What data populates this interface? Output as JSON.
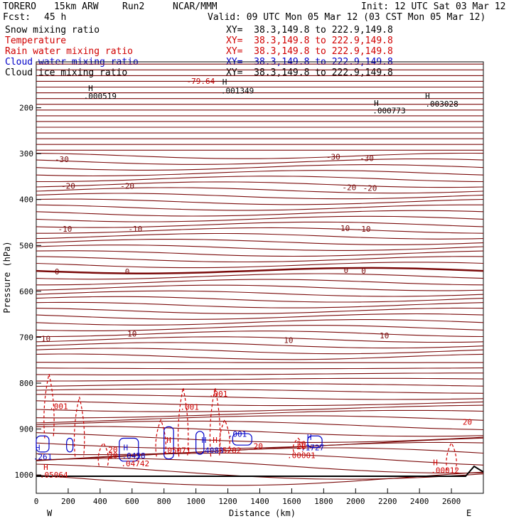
{
  "header": {
    "model": "TORERO",
    "resolution": "15km ARW",
    "run": "Run2",
    "org": "NCAR/MMM",
    "init": "Init: 12 UTC Sat 03 Mar 12",
    "fcst_label": "Fcst:",
    "fcst_value": "45 h",
    "valid": "Valid: 09 UTC Mon 05 Mar 12 (03 CST Mon 05 Mar 12)"
  },
  "fields": [
    {
      "name": "Snow mixing ratio",
      "xy": "XY=  38.3,149.8 to 222.9,149.8",
      "color": "#000000"
    },
    {
      "name": "Temperature",
      "xy": "XY=  38.3,149.8 to 222.9,149.8",
      "color": "#c00000"
    },
    {
      "name": "Rain water mixing ratio",
      "xy": "XY=  38.3,149.8 to 222.9,149.8",
      "color": "#d00000"
    },
    {
      "name": "Cloud water mixing ratio",
      "xy": "XY=  38.3,149.8 to 222.9,149.8",
      "color": "#0000c8"
    },
    {
      "name": "Cloud ice mixing ratio",
      "xy": "XY=  38.3,149.8 to 222.9,149.8",
      "color": "#000000"
    }
  ],
  "chart_data": {
    "type": "cross-section contour",
    "xlabel": "Distance (km)",
    "ylabel": "Pressure (hPa)",
    "x_range": [
      0,
      2800
    ],
    "y_range_hpa": [
      100,
      1040
    ],
    "x_ticks": [
      0,
      200,
      400,
      600,
      800,
      1000,
      1200,
      1400,
      1600,
      1800,
      2000,
      2200,
      2400,
      2600
    ],
    "y_ticks": [
      200,
      300,
      400,
      500,
      600,
      700,
      800,
      900,
      1000
    ],
    "endpoints": {
      "left": "W",
      "right": "E"
    },
    "temperature_contours": [
      {
        "value": -30,
        "labels": [
          {
            "x": 160,
            "p": 312
          },
          {
            "x": 1860,
            "p": 307
          },
          {
            "x": 2070,
            "p": 310
          }
        ]
      },
      {
        "value": -20,
        "labels": [
          {
            "x": 200,
            "p": 370
          },
          {
            "x": 570,
            "p": 370
          },
          {
            "x": 1960,
            "p": 373
          },
          {
            "x": 2090,
            "p": 375
          }
        ]
      },
      {
        "value": -10,
        "labels": [
          {
            "x": 180,
            "p": 464
          },
          {
            "x": 620,
            "p": 464
          },
          {
            "x": 1920,
            "p": 462
          },
          {
            "x": 2050,
            "p": 464
          }
        ]
      },
      {
        "value": 0,
        "labels": [
          {
            "x": 130,
            "p": 557
          },
          {
            "x": 570,
            "p": 557
          },
          {
            "x": 1940,
            "p": 554
          },
          {
            "x": 2050,
            "p": 555
          }
        ]
      },
      {
        "value": 10,
        "labels": [
          {
            "x": 60,
            "p": 703
          },
          {
            "x": 600,
            "p": 692
          },
          {
            "x": 1580,
            "p": 706
          },
          {
            "x": 2180,
            "p": 696
          }
        ]
      },
      {
        "value": 20,
        "labels": [
          {
            "x": 480,
            "p": 945
          },
          {
            "x": 1390,
            "p": 937
          },
          {
            "x": 1660,
            "p": 932
          },
          {
            "x": 2700,
            "p": 884
          }
        ]
      }
    ],
    "annotations": [
      {
        "text": "-79.64",
        "x": 1030,
        "p": 142,
        "color": "#c00000"
      },
      {
        "text": "H",
        "x": 340,
        "p": 157,
        "color": "#000000"
      },
      {
        "text": ".000519",
        "x": 400,
        "p": 174,
        "color": "#000000"
      },
      {
        "text": "H",
        "x": 1180,
        "p": 143,
        "color": "#000000"
      },
      {
        "text": ".001349",
        "x": 1260,
        "p": 163,
        "color": "#000000"
      },
      {
        "text": "H",
        "x": 2130,
        "p": 190,
        "color": "#000000"
      },
      {
        "text": ".000773",
        "x": 2210,
        "p": 206,
        "color": "#000000"
      },
      {
        "text": "H",
        "x": 2450,
        "p": 174,
        "color": "#000000"
      },
      {
        "text": ".003028",
        "x": 2540,
        "p": 191,
        "color": "#000000"
      },
      {
        "text": ".001",
        "x": 140,
        "p": 850,
        "color": "#d00000"
      },
      {
        "text": ".001",
        "x": 960,
        "p": 852,
        "color": "#d00000"
      },
      {
        "text": ".001",
        "x": 1140,
        "p": 823,
        "color": "#d00000"
      },
      {
        "text": "H",
        "x": 830,
        "p": 924,
        "color": "#d00000"
      },
      {
        "text": ".05071",
        "x": 880,
        "p": 946,
        "color": "#d00000"
      },
      {
        "text": "H",
        "x": 1120,
        "p": 924,
        "color": "#d00000"
      },
      {
        "text": "H",
        "x": 1050,
        "p": 924,
        "color": "#0000c8"
      },
      {
        "text": ".4083",
        "x": 1100,
        "p": 946,
        "color": "#0000c8"
      },
      {
        "text": ".5282",
        "x": 1210,
        "p": 946,
        "color": "#d00000"
      },
      {
        "text": ".001",
        "x": 1260,
        "p": 911,
        "color": "#0000c8"
      },
      {
        "text": "H",
        "x": 1710,
        "p": 918,
        "color": "#0000c8"
      },
      {
        "text": ".1727",
        "x": 1730,
        "p": 940,
        "color": "#0000c8"
      },
      {
        "text": "20",
        "x": 1660,
        "p": 938,
        "color": "#d00000"
      },
      {
        "text": ".00001",
        "x": 1660,
        "p": 957,
        "color": "#d00000"
      },
      {
        "text": "H",
        "x": 10,
        "p": 940,
        "color": "#0000c8"
      },
      {
        "text": ".261",
        "x": 40,
        "p": 960,
        "color": "#0000c8"
      },
      {
        "text": "H",
        "x": 60,
        "p": 983,
        "color": "#d00000"
      },
      {
        "text": ".05064",
        "x": 110,
        "p": 1000,
        "color": "#d00000"
      },
      {
        "text": "H",
        "x": 560,
        "p": 940,
        "color": "#0000c8"
      },
      {
        "text": ".0458",
        "x": 610,
        "p": 958,
        "color": "#0000c8"
      },
      {
        "text": "20",
        "x": 480,
        "p": 957,
        "color": "#d00000"
      },
      {
        "text": ".04742",
        "x": 620,
        "p": 975,
        "color": "#d00000"
      },
      {
        "text": "H",
        "x": 2500,
        "p": 973,
        "color": "#d00000"
      },
      {
        "text": ".00012",
        "x": 2560,
        "p": 990,
        "color": "#d00000"
      }
    ]
  }
}
